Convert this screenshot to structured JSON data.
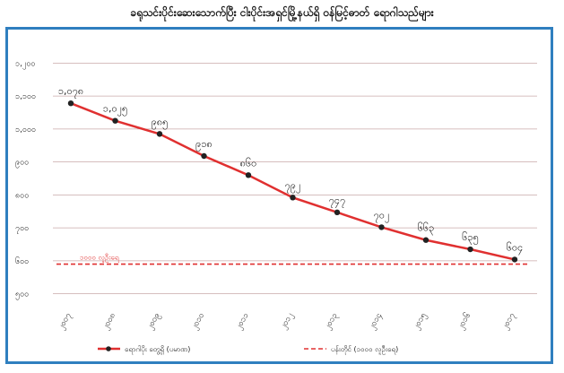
{
  "chart_data": {
    "type": "line",
    "title": "ခရုသင်းပိုင်းဆေးသောက်ပြီး ငါးပိုင်းအရှင်မြို့နယ်ရှိ ဝန်မြင့်ဓာတ် ရောဂါသည်များ",
    "categories": [
      "၂၀၀၇",
      "၂၀၀၈",
      "၂၀၀၉",
      "၂၀၁၀",
      "၂၀၁၁",
      "၂၀၁၂",
      "၂၀၁၃",
      "၂၀၁၄",
      "၂၀၁၅",
      "၂၀၁၆",
      "၂၀၁၇"
    ],
    "y_ticks": [
      "၁,၂၀၀",
      "၁,၁၀၀",
      "၁,၀၀၀",
      "၉၀၀",
      "၈၀၀",
      "၇၀၀",
      "၆၀၀",
      "၅၀၀"
    ],
    "ylim": [
      480,
      1220
    ],
    "series": [
      {
        "name": "ရောဂါပိုး တွေ့ရှိ (ပမာဏ)",
        "color": "#e03030",
        "values": [
          1078,
          1025,
          985,
          918,
          860,
          792,
          747,
          702,
          663,
          635,
          604
        ],
        "labels": [
          "၁,၀၇၈",
          "၁,၀၂၅",
          "၉၈၅",
          "၉၁၈",
          "၈၆၀",
          "၇၉၂",
          "၇၄၇",
          "၇၀၂",
          "၆၆၃",
          "၆၃၅",
          "၆၀၄"
        ]
      }
    ],
    "reference_line": {
      "name": "ပန်းတိုင် (၁၀၀၀ လူဦးရေ)",
      "label": "၁၀၀၀ လူဦးရေ",
      "value": 590,
      "color": "#e03030"
    },
    "legend_position": "bottom",
    "grid": true
  }
}
